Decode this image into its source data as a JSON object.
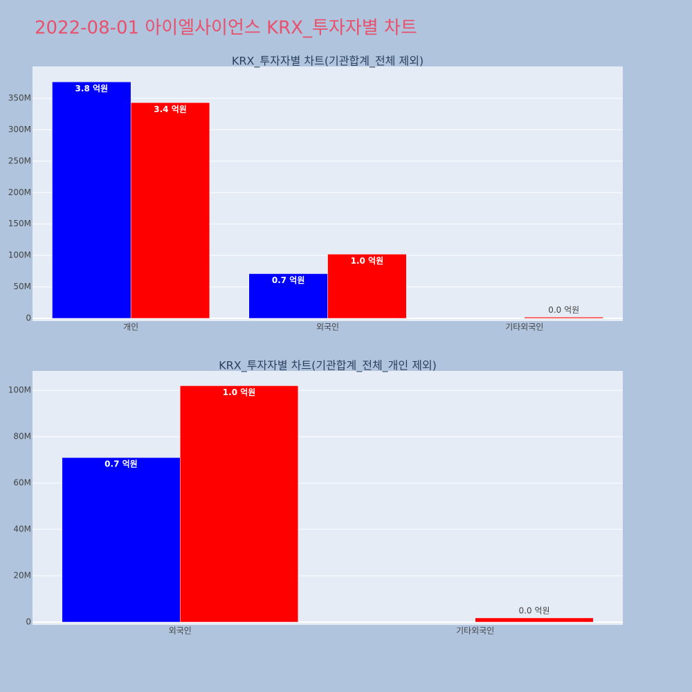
{
  "title": "2022-08-01 아이엘사이언스 KRX_투자자별 차트",
  "chart_data": [
    {
      "type": "bar",
      "title": "KRX_투자자별 차트(기관합계_전체 제외)",
      "categories": [
        "개인",
        "외국인",
        "기타외국인"
      ],
      "series": [
        {
          "color": "#0000ff",
          "values": [
            376000000,
            71000000,
            null
          ],
          "value_labels": [
            "3.8 억원",
            "0.7 억원",
            null
          ]
        },
        {
          "color": "#ff0000",
          "values": [
            343000000,
            102000000,
            1800000
          ],
          "value_labels": [
            "3.4 억원",
            "1.0 억원",
            "0.0 억원"
          ]
        }
      ],
      "ylim": [
        -4400000,
        400600000
      ],
      "yticks": [
        {
          "value": 0,
          "label": "0"
        },
        {
          "value": 50000000,
          "label": "50M"
        },
        {
          "value": 100000000,
          "label": "100M"
        },
        {
          "value": 150000000,
          "label": "150M"
        },
        {
          "value": 200000000,
          "label": "200M"
        },
        {
          "value": 250000000,
          "label": "250M"
        },
        {
          "value": 300000000,
          "label": "300M"
        },
        {
          "value": 350000000,
          "label": "350M"
        }
      ],
      "grid": true
    },
    {
      "type": "bar",
      "title": "KRX_투자자별 차트(기관합계_전체_개인 제외)",
      "categories": [
        "외국인",
        "기타외국인"
      ],
      "series": [
        {
          "color": "#0000ff",
          "values": [
            71000000,
            null
          ],
          "value_labels": [
            "0.7 억원",
            null
          ]
        },
        {
          "color": "#ff0000",
          "values": [
            102000000,
            1800000
          ],
          "value_labels": [
            "1.0 억원",
            "0.0 억원"
          ]
        }
      ],
      "ylim": [
        -1200000,
        108400000
      ],
      "yticks": [
        {
          "value": 0,
          "label": "0"
        },
        {
          "value": 20000000,
          "label": "20M"
        },
        {
          "value": 40000000,
          "label": "40M"
        },
        {
          "value": 60000000,
          "label": "60M"
        },
        {
          "value": 80000000,
          "label": "80M"
        },
        {
          "value": 100000000,
          "label": "100M"
        }
      ],
      "grid": true
    }
  ]
}
